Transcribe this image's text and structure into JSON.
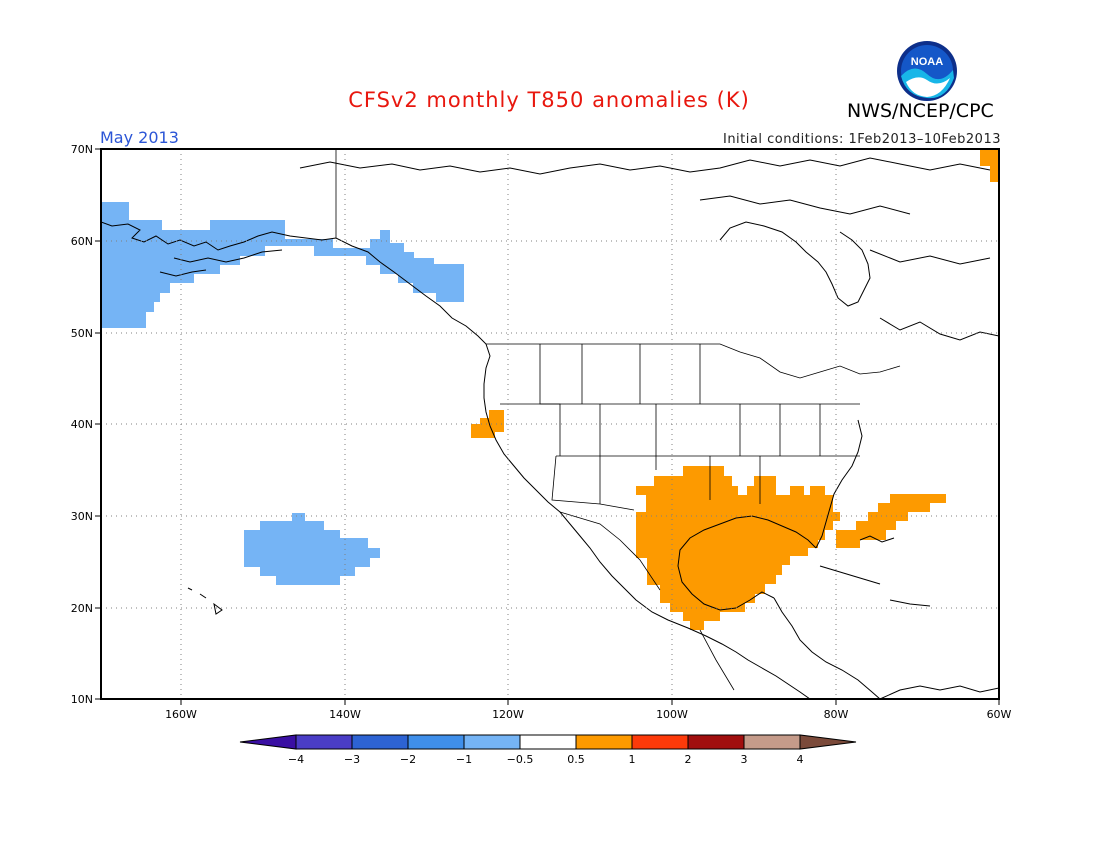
{
  "header": {
    "title": "CFSv2 monthly T850 anomalies (K)",
    "title_color": "#e8170e",
    "agency": "NWS/NCEP/CPC",
    "period": "May 2013",
    "period_color": "#2b55d6",
    "initial_conditions": "Initial conditions: 1Feb2013–10Feb2013",
    "logo_text": "NOAA"
  },
  "map": {
    "lat_labels": [
      "70N",
      "60N",
      "50N",
      "40N",
      "30N",
      "20N",
      "10N"
    ],
    "lon_labels": [
      "160W",
      "140W",
      "120W",
      "100W",
      "80W",
      "60W"
    ],
    "extent": {
      "lon_min": -170,
      "lon_max": -60,
      "lat_min": 10,
      "lat_max": 70
    },
    "gridlines": "dotted"
  },
  "anomaly_regions": [
    {
      "name": "alaska-cold-anomaly",
      "class": "-1 to -0.5",
      "color": "#75b4f5"
    },
    {
      "name": "pacific-cold-anomaly",
      "class": "-1 to -0.5",
      "color": "#75b4f5"
    },
    {
      "name": "california-warm-anomaly",
      "class": "0.5 to 1",
      "color": "#fd9a00"
    },
    {
      "name": "gulf-warm-anomaly",
      "class": "0.5 to 1",
      "color": "#fd9a00"
    },
    {
      "name": "atlantic-warm-anomaly",
      "class": "0.5 to 1",
      "color": "#fd9a00"
    },
    {
      "name": "baffin-warm-anomaly",
      "class": "0.5 to 1",
      "color": "#fd9a00"
    }
  ],
  "colorbar": {
    "colors": [
      "#3a0fa3",
      "#4a3dc6",
      "#2d63d3",
      "#3f8fea",
      "#75b4f5",
      "#ffffff",
      "#fd9a00",
      "#fd3a0a",
      "#a10f0f",
      "#c59b8a",
      "#7b4a3a"
    ],
    "labels": [
      "−4",
      "−3",
      "−2",
      "−1",
      "−0.5",
      "0.5",
      "1",
      "2",
      "3",
      "4"
    ]
  }
}
